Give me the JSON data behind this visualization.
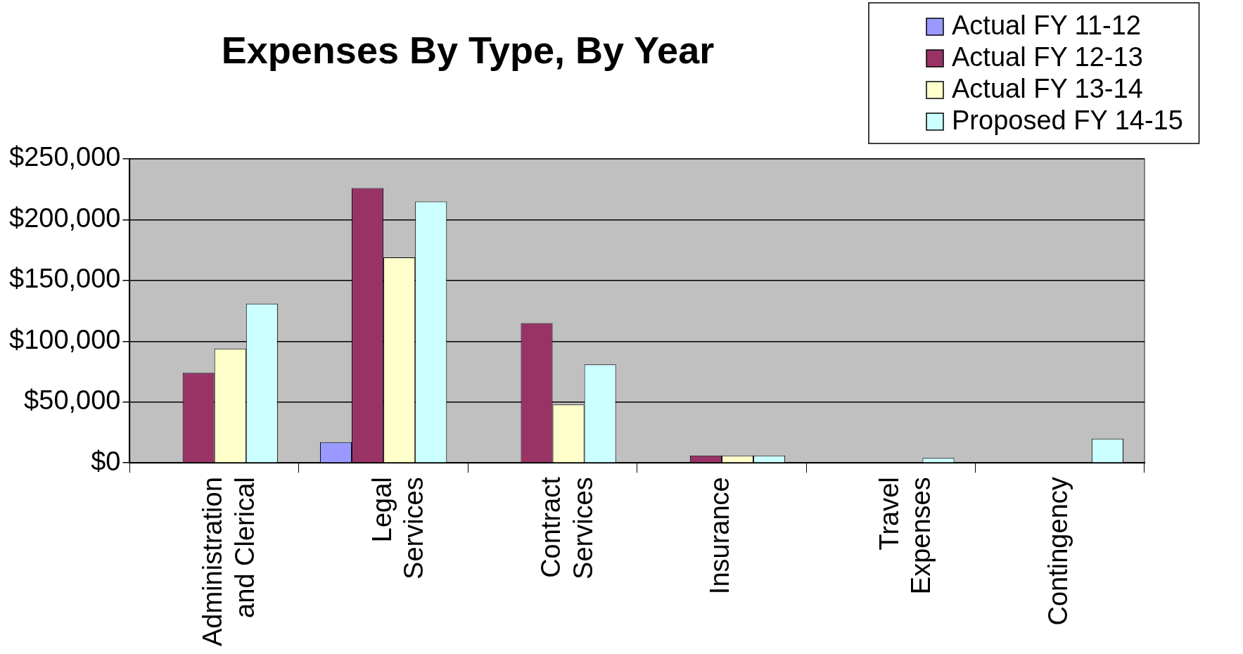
{
  "chart_data": {
    "type": "bar",
    "title": "Expenses By Type, By Year",
    "categories": [
      "Administration and Clerical",
      "Legal Services",
      "Contract Services",
      "Insurance",
      "Travel Expenses",
      "Contingency"
    ],
    "series": [
      {
        "name": "Actual FY 11-12",
        "color": "#9999ff",
        "values": [
          0,
          17000,
          0,
          0,
          0,
          0
        ]
      },
      {
        "name": "Actual FY 12-13",
        "color": "#993366",
        "values": [
          74000,
          226000,
          115000,
          6000,
          0,
          0
        ]
      },
      {
        "name": "Actual FY 13-14",
        "color": "#ffffcc",
        "values": [
          94000,
          169000,
          48000,
          6000,
          0,
          0
        ]
      },
      {
        "name": "Proposed FY 14-15",
        "color": "#ccffff",
        "values": [
          131000,
          215000,
          81000,
          6000,
          4000,
          20000
        ]
      }
    ],
    "ylim": [
      0,
      250000
    ],
    "yticks": [
      {
        "value": 0,
        "label": "$0"
      },
      {
        "value": 50000,
        "label": "$50,000"
      },
      {
        "value": 100000,
        "label": "$100,000"
      },
      {
        "value": 150000,
        "label": "$150,000"
      },
      {
        "value": 200000,
        "label": "$200,000"
      },
      {
        "value": 250000,
        "label": "$250,000"
      }
    ],
    "grid": "y",
    "legend": "top right"
  }
}
